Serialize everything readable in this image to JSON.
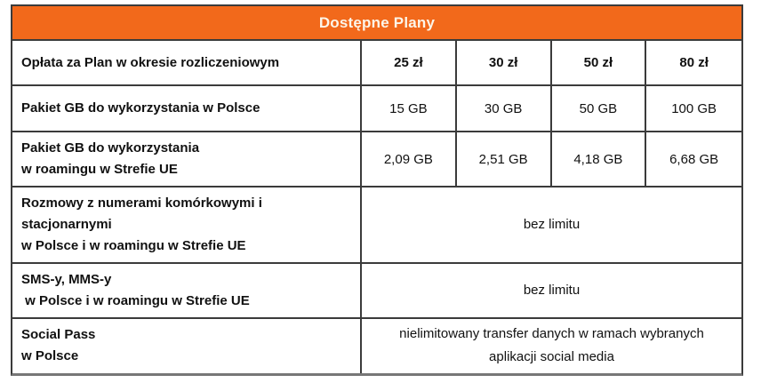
{
  "table": {
    "title": "Dostępne Plany",
    "rows": [
      {
        "label_lines": [
          "Opłata za Plan w okresie rozliczeniowym"
        ],
        "values": [
          "25 zł",
          "30 zł",
          "50 zł",
          "80 zł"
        ],
        "values_bold": true
      },
      {
        "label_lines": [
          "Pakiet GB do wykorzystania w Polsce"
        ],
        "values": [
          "15 GB",
          "30 GB",
          "50 GB",
          "100 GB"
        ],
        "values_bold": false
      },
      {
        "label_lines": [
          "Pakiet GB do wykorzystania",
          "w roamingu w Strefie UE"
        ],
        "values": [
          "2,09 GB",
          "2,51 GB",
          "4,18 GB",
          "6,68 GB"
        ],
        "values_bold": false
      },
      {
        "label_lines": [
          "Rozmowy z numerami komórkowymi i",
          "stacjonarnymi",
          "w Polsce i w roamingu w Strefie UE"
        ],
        "merged_value": "bez limitu"
      },
      {
        "label_lines": [
          "SMS-y, MMS-y",
          " w Polsce i w roamingu w Strefie UE"
        ],
        "merged_value": "bez limitu"
      },
      {
        "label_lines": [
          "Social Pass",
          "w Polsce"
        ],
        "merged_value": "nielimitowany transfer danych w ramach wybranych aplikacji social media"
      }
    ],
    "colors": {
      "accent": "#F2691B",
      "header_text": "#FCF5E9",
      "border": "#3b3b3b",
      "text": "#111111"
    }
  }
}
